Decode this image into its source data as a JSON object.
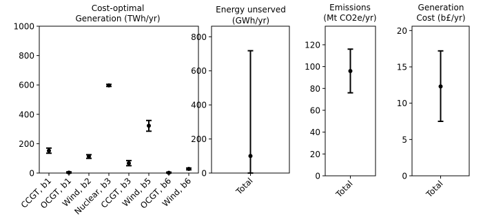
{
  "chart_data": [
    {
      "type": "scatter",
      "title_lines": [
        "Cost-optimal",
        "Generation (TWh/yr)"
      ],
      "categories": [
        "CCGT, b1",
        "OCGT, b1",
        "Wind, b2",
        "Nuclear, b3",
        "CCGT, b3",
        "Wind, b5",
        "OCGT, b6",
        "Wind, b6"
      ],
      "values": [
        152,
        3,
        113,
        597,
        67,
        322,
        2,
        28
      ],
      "err_low": [
        135,
        0,
        100,
        590,
        50,
        285,
        0,
        22
      ],
      "err_high": [
        170,
        8,
        125,
        604,
        85,
        358,
        6,
        34
      ],
      "ylim": [
        0,
        1000
      ],
      "yticks": [
        0,
        200,
        400,
        600,
        800,
        1000
      ],
      "ytick_labels": [
        "0",
        "200",
        "400",
        "600",
        "800",
        "1000"
      ]
    },
    {
      "type": "scatter",
      "title_lines": [
        "Energy unserved",
        "(GWh/yr)"
      ],
      "categories": [
        "Total"
      ],
      "values": [
        100
      ],
      "err_low": [
        0
      ],
      "err_high": [
        718
      ],
      "ylim": [
        0,
        862
      ],
      "yticks": [
        0,
        200,
        400,
        600,
        800
      ],
      "ytick_labels": [
        "0",
        "200",
        "400",
        "600",
        "800"
      ]
    },
    {
      "type": "scatter",
      "title_lines": [
        "Emissions",
        "(Mt CO2e/yr)"
      ],
      "categories": [
        "Total"
      ],
      "values": [
        96
      ],
      "err_low": [
        76
      ],
      "err_high": [
        116
      ],
      "ylim": [
        0,
        137
      ],
      "yticks": [
        0,
        20,
        40,
        60,
        80,
        100,
        120
      ],
      "ytick_labels": [
        "0",
        "20",
        "40",
        "60",
        "80",
        "100",
        "120"
      ]
    },
    {
      "type": "scatter",
      "title_lines": [
        "Generation",
        "Cost (b£/yr)"
      ],
      "categories": [
        "Total"
      ],
      "values": [
        12.3
      ],
      "err_low": [
        7.5
      ],
      "err_high": [
        17.2
      ],
      "ylim": [
        0,
        20.6
      ],
      "yticks": [
        0,
        5,
        10,
        15,
        20
      ],
      "ytick_labels": [
        "0",
        "5",
        "10",
        "15",
        "20"
      ]
    }
  ]
}
